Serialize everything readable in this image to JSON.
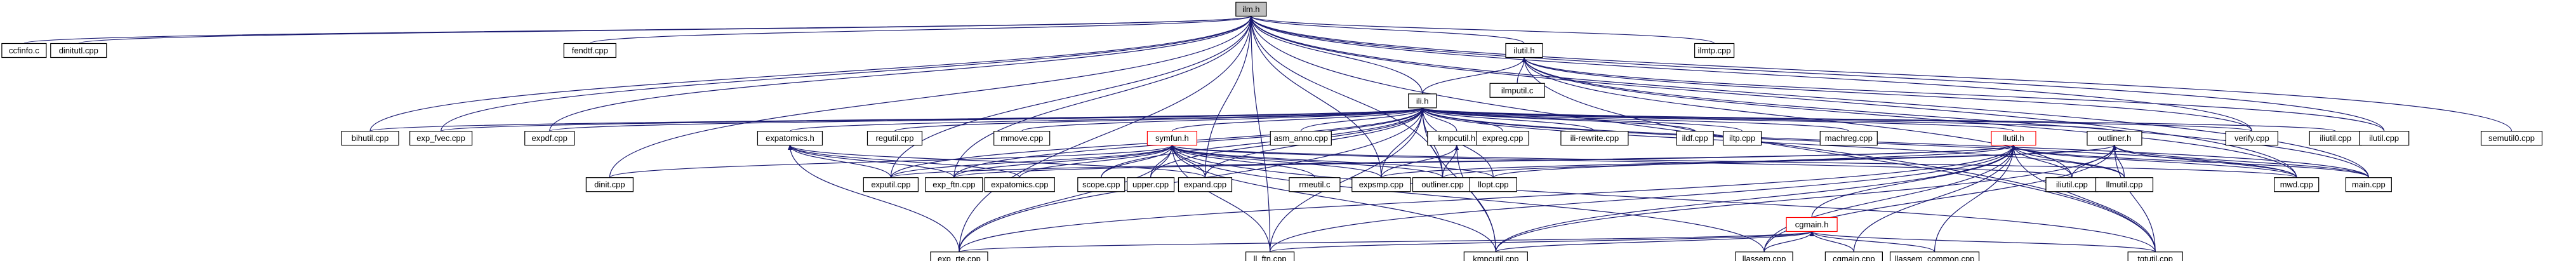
{
  "diagram": {
    "kind": "include-dependency-graph",
    "colors": {
      "edge": "#191970",
      "node_border": "#000000",
      "node_border_highlight": "#ff0000",
      "root_fill": "#bfbfbf",
      "node_fill": "#ffffff",
      "background": "#ffffff"
    },
    "nodes": [
      {
        "id": "ilm_h",
        "label": "ilm.h",
        "style": "root"
      },
      {
        "id": "ccfinfo_c",
        "label": "ccfinfo.c"
      },
      {
        "id": "dinitutl_cpp",
        "label": "dinitutl.cpp"
      },
      {
        "id": "fendtf_cpp",
        "label": "fendtf.cpp"
      },
      {
        "id": "ilmtp_cpp",
        "label": "ilmtp.cpp"
      },
      {
        "id": "ilutil_h",
        "label": "ilutil.h"
      },
      {
        "id": "ilmputil_c",
        "label": "ilmputil.c"
      },
      {
        "id": "ili_h",
        "label": "ili.h"
      },
      {
        "id": "bihutil_cpp",
        "label": "bihutil.cpp"
      },
      {
        "id": "exp_fvec_cpp",
        "label": "exp_fvec.cpp"
      },
      {
        "id": "expdf_cpp",
        "label": "expdf.cpp"
      },
      {
        "id": "expatomics_h",
        "label": "expatomics.h"
      },
      {
        "id": "symfun_h",
        "label": "symfun.h",
        "style": "red"
      },
      {
        "id": "regutil_cpp",
        "label": "regutil.cpp"
      },
      {
        "id": "mmove_cpp",
        "label": "mmove.cpp"
      },
      {
        "id": "asm_anno_cpp",
        "label": "asm_anno.cpp"
      },
      {
        "id": "kmpcutil_h",
        "label": "kmpcutil.h"
      },
      {
        "id": "expreg_cpp",
        "label": "expreg.cpp"
      },
      {
        "id": "ili_rewrite_cpp",
        "label": "ili-rewrite.cpp"
      },
      {
        "id": "iliutil_cpp",
        "label": "iliutil.cpp"
      },
      {
        "id": "ildf_cpp",
        "label": "ildf.cpp"
      },
      {
        "id": "iltp_cpp",
        "label": "iltp.cpp"
      },
      {
        "id": "machreg_cpp",
        "label": "machreg.cpp"
      },
      {
        "id": "llutil_h",
        "label": "llutil.h",
        "style": "red"
      },
      {
        "id": "outliner_h",
        "label": "outliner.h"
      },
      {
        "id": "verify_cpp",
        "label": "verify.cpp"
      },
      {
        "id": "ilutil_cpp",
        "label": "ilutil.cpp"
      },
      {
        "id": "semutil0_cpp",
        "label": "semutil0.cpp"
      },
      {
        "id": "dinit_cpp",
        "label": "dinit.cpp"
      },
      {
        "id": "exputil_cpp",
        "label": "exputil.cpp"
      },
      {
        "id": "exp_ftn_cpp",
        "label": "exp_ftn.cpp"
      },
      {
        "id": "expatomics_cpp",
        "label": "expatomics.cpp"
      },
      {
        "id": "scope_cpp",
        "label": "scope.cpp"
      },
      {
        "id": "upper_cpp",
        "label": "upper.cpp"
      },
      {
        "id": "expand_cpp",
        "label": "expand.cpp"
      },
      {
        "id": "rmeutil_c",
        "label": "rmeutil.c"
      },
      {
        "id": "expsmp_cpp",
        "label": "expsmp.cpp"
      },
      {
        "id": "outliner_cpp",
        "label": "outliner.cpp"
      },
      {
        "id": "llopt_cpp",
        "label": "llopt.cpp"
      },
      {
        "id": "iliutil2_cpp",
        "label": "iliutil.cpp"
      },
      {
        "id": "llmutil_cpp",
        "label": "llmutil.cpp"
      },
      {
        "id": "mwd_cpp",
        "label": "mwd.cpp"
      },
      {
        "id": "main_cpp",
        "label": "main.cpp"
      },
      {
        "id": "cgmain_h",
        "label": "cgmain.h",
        "style": "red"
      },
      {
        "id": "exp_rte_cpp",
        "label": "exp_rte.cpp"
      },
      {
        "id": "ll_ftn_cpp",
        "label": "ll_ftn.cpp"
      },
      {
        "id": "kmpcutil_cpp",
        "label": "kmpcutil.cpp"
      },
      {
        "id": "llassem_cpp",
        "label": "llassem.cpp"
      },
      {
        "id": "cgmain_cpp",
        "label": "cgmain.cpp"
      },
      {
        "id": "llassem_common_cpp",
        "label": "llassem_common.cpp"
      },
      {
        "id": "tgtutil_cpp",
        "label": "tgtutil.cpp"
      }
    ]
  }
}
